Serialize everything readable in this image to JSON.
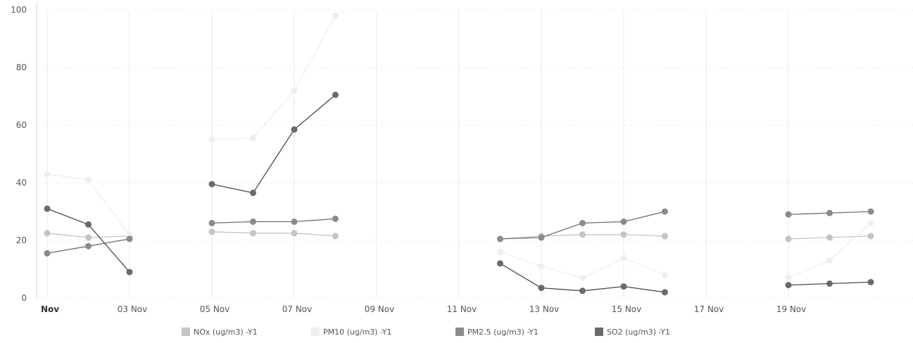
{
  "chart_data": {
    "type": "line",
    "x_type": "date",
    "xlim": [
      "2021-10-31",
      "2021-11-21"
    ],
    "ylim": [
      0,
      100
    ],
    "y_ticks": [
      0,
      20,
      40,
      60,
      80,
      100
    ],
    "x_ticks": [
      {
        "date": "2021-11-01",
        "label": "Nov",
        "bold": true
      },
      {
        "date": "2021-11-03",
        "label": "03 Nov"
      },
      {
        "date": "2021-11-05",
        "label": "05 Nov"
      },
      {
        "date": "2021-11-07",
        "label": "07 Nov"
      },
      {
        "date": "2021-11-09",
        "label": "09 Nov"
      },
      {
        "date": "2021-11-11",
        "label": "11 Nov"
      },
      {
        "date": "2021-11-13",
        "label": "13 Nov"
      },
      {
        "date": "2021-11-15",
        "label": "15 Nov"
      },
      {
        "date": "2021-11-17",
        "label": "17 Nov"
      },
      {
        "date": "2021-11-19",
        "label": "19 Nov"
      }
    ],
    "grid": true,
    "legend_position": "bottom",
    "series": [
      {
        "name": "NOx (ug/m3) -Y1",
        "color": "#c4c4c4",
        "points": [
          [
            "2021-11-01",
            22.5
          ],
          [
            "2021-11-02",
            21
          ],
          [
            "2021-11-03",
            21.5
          ],
          [
            "2021-11-05",
            23
          ],
          [
            "2021-11-06",
            22.5
          ],
          [
            "2021-11-07",
            22.5
          ],
          [
            "2021-11-08",
            21.5
          ],
          [
            "2021-11-12",
            20.5
          ],
          [
            "2021-11-13",
            21.5
          ],
          [
            "2021-11-14",
            22
          ],
          [
            "2021-11-15",
            22
          ],
          [
            "2021-11-16",
            21.5
          ],
          [
            "2021-11-19",
            20.5
          ],
          [
            "2021-11-20",
            21
          ],
          [
            "2021-11-21",
            21.5
          ]
        ]
      },
      {
        "name": "PM10 (ug/m3) -Y1",
        "color": "#eeeeee",
        "points": [
          [
            "2021-11-01",
            43
          ],
          [
            "2021-11-02",
            41
          ],
          [
            "2021-11-03",
            22
          ],
          [
            "2021-11-05",
            55
          ],
          [
            "2021-11-06",
            55.5
          ],
          [
            "2021-11-07",
            72
          ],
          [
            "2021-11-08",
            98
          ],
          [
            "2021-11-12",
            16
          ],
          [
            "2021-11-13",
            11
          ],
          [
            "2021-11-14",
            7
          ],
          [
            "2021-11-15",
            14
          ],
          [
            "2021-11-16",
            8
          ],
          [
            "2021-11-19",
            7
          ],
          [
            "2021-11-20",
            13
          ],
          [
            "2021-11-21",
            26
          ]
        ]
      },
      {
        "name": "PM2.5 (ug/m3) -Y1",
        "color": "#8a8a8a",
        "points": [
          [
            "2021-11-01",
            15.5
          ],
          [
            "2021-11-02",
            18
          ],
          [
            "2021-11-03",
            20.5
          ],
          [
            "2021-11-05",
            26
          ],
          [
            "2021-11-06",
            26.5
          ],
          [
            "2021-11-07",
            26.5
          ],
          [
            "2021-11-08",
            27.5
          ],
          [
            "2021-11-12",
            20.5
          ],
          [
            "2021-11-13",
            21
          ],
          [
            "2021-11-14",
            26
          ],
          [
            "2021-11-15",
            26.5
          ],
          [
            "2021-11-16",
            30
          ],
          [
            "2021-11-19",
            29
          ],
          [
            "2021-11-20",
            29.5
          ],
          [
            "2021-11-21",
            30
          ]
        ]
      },
      {
        "name": "SO2 (ug/m3) -Y1",
        "color": "#6a6a6a",
        "points": [
          [
            "2021-11-01",
            31
          ],
          [
            "2021-11-02",
            25.5
          ],
          [
            "2021-11-03",
            9
          ],
          [
            "2021-11-05",
            39.5
          ],
          [
            "2021-11-06",
            36.5
          ],
          [
            "2021-11-07",
            58.5
          ],
          [
            "2021-11-08",
            70.5
          ],
          [
            "2021-11-12",
            12
          ],
          [
            "2021-11-13",
            3.5
          ],
          [
            "2021-11-14",
            2.5
          ],
          [
            "2021-11-15",
            4
          ],
          [
            "2021-11-16",
            2
          ],
          [
            "2021-11-19",
            4.5
          ],
          [
            "2021-11-20",
            5
          ],
          [
            "2021-11-21",
            5.5
          ]
        ]
      }
    ]
  }
}
